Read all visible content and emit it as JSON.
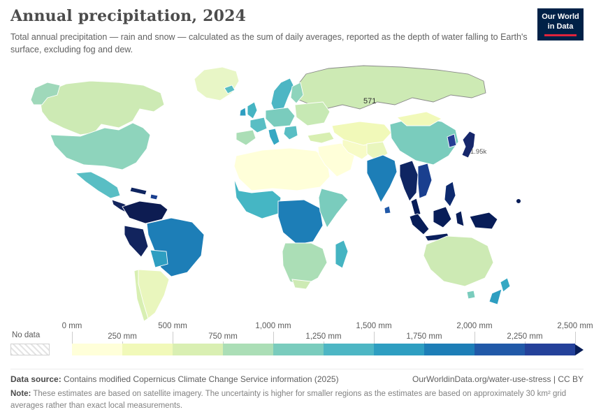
{
  "header": {
    "title": "Annual precipitation, 2024",
    "subtitle": "Total annual precipitation — rain and snow — calculated as the sum of daily averages, reported as the depth of water falling to Earth's surface, excluding fog and dew.",
    "logo": {
      "line1": "Our World",
      "line2": "in Data",
      "bg": "#002147",
      "accent": "#e0233c"
    }
  },
  "map": {
    "annotations": {
      "russia": "571",
      "japan": "1.95k"
    },
    "region_colors": {
      "russia": "#cdeab4",
      "greenland": "#e8f6c6",
      "canada": "#cdeab4",
      "alaska": "#9fd8ba",
      "usa": "#8ed4bc",
      "mexico": "#59bec4",
      "cuba": "#0f2560",
      "hispaniola": "#1a3f8f",
      "central_america": "#14255e",
      "colombia_venezuela": "#0d1c52",
      "brazil": "#1d7eb7",
      "peru": "#12245e",
      "bolivia": "#2e9ec1",
      "chile": "#d8efb2",
      "argentina": "#e9f6bd",
      "north_africa": "#ffffd9",
      "west_africa": "#45b6c4",
      "central_africa": "#1d7eb7",
      "east_africa": "#7accbd",
      "southern_africa": "#abdeb6",
      "south_africa": "#cdeab4",
      "madagascar": "#45b4c2",
      "iceland": "#59bec4",
      "scandinavia": "#4db6c4",
      "finland": "#8ed4bc",
      "uk": "#45b4c2",
      "ireland": "#2e9ec1",
      "france": "#59bec4",
      "central_europe": "#7accbd",
      "iberia": "#abdeb6",
      "italy": "#35a8c3",
      "balkans": "#59bec4",
      "eastern_europe": "#c7e9b4",
      "turkey": "#d8efb2",
      "arabia": "#ffffd9",
      "iran": "#f7fbc6",
      "central_asia": "#f1f9b9",
      "afghanistan_pakistan": "#e9f6bd",
      "india": "#1d7eb7",
      "sri_lanka": "#2159a8",
      "china": "#7accbd",
      "mongolia": "#f1f9b9",
      "korea": "#253d94",
      "japan": "#16276b",
      "myanmar_thailand": "#0f2562",
      "vietnam": "#1a3f8f",
      "malay_peninsula": "#081d58",
      "sumatra": "#081d58",
      "borneo": "#081d58",
      "java": "#0a1f5c",
      "sulawesi": "#081d58",
      "philippines": "#0d2a6e",
      "new_guinea": "#081d58",
      "australia": "#cdeab4",
      "tasmania": "#7accbd",
      "nz_north": "#35a8c3",
      "nz_south": "#2e9ec1",
      "fiji": "#081d58"
    }
  },
  "legend": {
    "no_data_label": "No data",
    "ticks_top": [
      "0 mm",
      "500 mm",
      "1,000 mm",
      "1,500 mm",
      "2,000 mm",
      "2,500 mm"
    ],
    "ticks_bottom": [
      "250 mm",
      "750 mm",
      "1,250 mm",
      "1,750 mm",
      "2,250 mm"
    ]
  },
  "footer": {
    "source_label": "Data source:",
    "source_text": " Contains modified Copernicus Climate Change Service information (2025)",
    "credit": "OurWorldinData.org/water-use-stress | CC BY",
    "note_label": "Note:",
    "note_text": " These estimates are based on satellite imagery. The uncertainty is higher for smaller regions as the estimates are based on approximately 30 km² grid averages rather than exact local measurements."
  },
  "chart_data": {
    "type": "heatmap",
    "subtype": "world-choropleth",
    "title": "Annual precipitation, 2024",
    "unit": "mm",
    "legend_range": [
      0,
      2500
    ],
    "bin_width": 250,
    "color_scale": {
      "bins": [
        {
          "range": [
            0,
            250
          ],
          "color": "#ffffd9"
        },
        {
          "range": [
            250,
            500
          ],
          "color": "#f1f9b9"
        },
        {
          "range": [
            500,
            750
          ],
          "color": "#d9efb2"
        },
        {
          "range": [
            750,
            1000
          ],
          "color": "#abdeb6"
        },
        {
          "range": [
            1000,
            1250
          ],
          "color": "#7accbd"
        },
        {
          "range": [
            1250,
            1500
          ],
          "color": "#4db6c4"
        },
        {
          "range": [
            1500,
            1750
          ],
          "color": "#2e9ec1"
        },
        {
          "range": [
            1750,
            2000
          ],
          "color": "#1d7eb7"
        },
        {
          "range": [
            2000,
            2250
          ],
          "color": "#2159a8"
        },
        {
          "range": [
            2250,
            2500
          ],
          "color": "#24419a"
        },
        {
          "range": [
            2500,
            null
          ],
          "color": "#081d58"
        }
      ],
      "no_data": "hatched"
    },
    "labeled_values": [
      {
        "region": "Russia",
        "label": "571",
        "value_mm": 571
      },
      {
        "region": "Japan",
        "label": "1.95k",
        "value_mm": 1950
      }
    ]
  }
}
